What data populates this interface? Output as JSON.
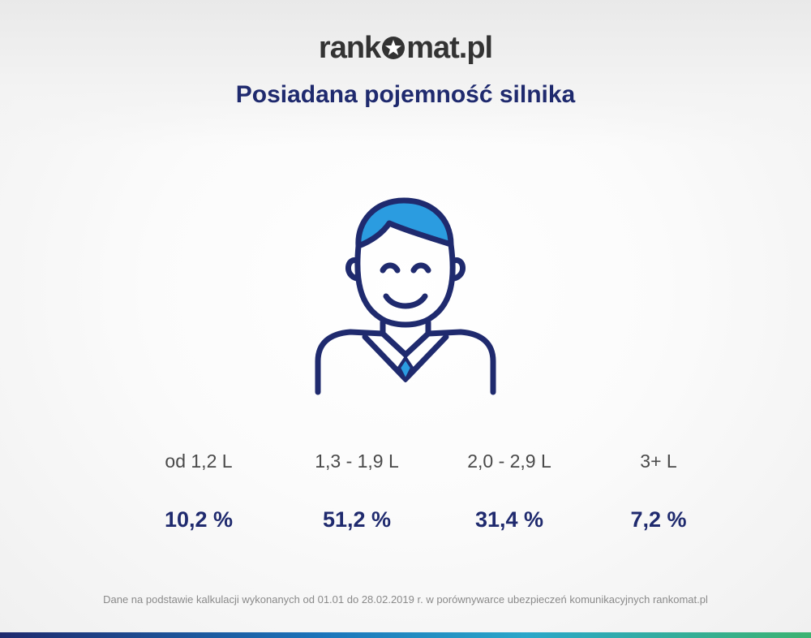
{
  "brand": {
    "logo_left": "rank",
    "logo_right": "mat.pl",
    "logo_icon": "star-o-icon",
    "colors": {
      "navy": "#1f2a6e",
      "blue": "#2b9ce0",
      "dark_text": "#333333"
    }
  },
  "title": "Posiadana pojemność silnika",
  "illustration": "smiling-man-icon",
  "chart_data": {
    "type": "table",
    "title": "Posiadana pojemność silnika",
    "categories": [
      "od 1,2 L",
      "1,3 - 1,9 L",
      "2,0 - 2,9 L",
      "3+ L"
    ],
    "values": [
      10.2,
      51.2,
      31.4,
      7.2
    ],
    "value_labels": [
      "10,2 %",
      "51,2 %",
      "31,4 %",
      "7,2 %"
    ],
    "unit": "%"
  },
  "footnote": "Dane na podstawie kalkulacji wykonanych od 01.01 do 28.02.2019 r. w porównywarce ubezpieczeń komunikacyjnych rankomat.pl"
}
